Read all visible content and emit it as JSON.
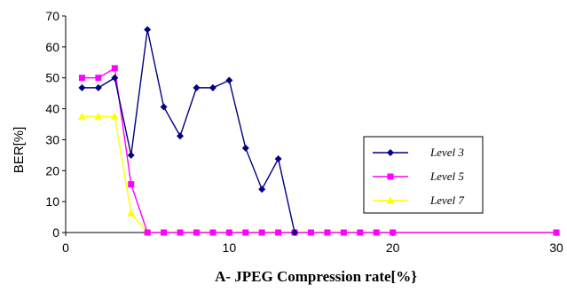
{
  "chart_data": {
    "type": "line",
    "xlabel": "A- JPEG Compression rate[%}",
    "ylabel": "BER[%]",
    "xlim": [
      0,
      30
    ],
    "ylim": [
      0,
      70
    ],
    "xticks": [
      0,
      10,
      20,
      30
    ],
    "yticks": [
      0,
      10,
      20,
      30,
      40,
      50,
      60,
      70
    ],
    "grid": false,
    "legend_position": "right",
    "series": [
      {
        "name": "Level 3",
        "color": "#000080",
        "marker": "diamond",
        "points": [
          [
            1,
            46.8
          ],
          [
            2,
            46.8
          ],
          [
            3,
            50
          ],
          [
            4,
            25
          ],
          [
            5,
            65.6
          ],
          [
            6,
            40.6
          ],
          [
            7,
            31.2
          ],
          [
            8,
            46.8
          ],
          [
            9,
            46.8
          ],
          [
            10,
            49.2
          ],
          [
            11,
            27.3
          ],
          [
            12,
            14
          ],
          [
            13,
            23.8
          ],
          [
            14,
            0
          ]
        ]
      },
      {
        "name": "Level 5",
        "color": "#FF00FF",
        "marker": "square",
        "points": [
          [
            1,
            50
          ],
          [
            2,
            50
          ],
          [
            3,
            53.1
          ],
          [
            4,
            15.6
          ],
          [
            5,
            0
          ],
          [
            6,
            0
          ],
          [
            7,
            0
          ],
          [
            8,
            0
          ],
          [
            9,
            0
          ],
          [
            10,
            0
          ],
          [
            11,
            0
          ],
          [
            12,
            0
          ],
          [
            13,
            0
          ],
          [
            14,
            0
          ],
          [
            15,
            0
          ],
          [
            16,
            0
          ],
          [
            17,
            0
          ],
          [
            18,
            0
          ],
          [
            19,
            0
          ],
          [
            20,
            0
          ],
          [
            30,
            0
          ]
        ]
      },
      {
        "name": "Level 7",
        "color": "#FFFF00",
        "marker": "triangle",
        "points": [
          [
            1,
            37.5
          ],
          [
            2,
            37.5
          ],
          [
            3,
            37.5
          ],
          [
            4,
            6.2
          ],
          [
            5,
            0
          ],
          [
            6,
            0
          ],
          [
            7,
            0
          ],
          [
            8,
            0
          ],
          [
            9,
            0
          ],
          [
            10,
            0
          ],
          [
            11,
            0
          ],
          [
            12,
            0
          ],
          [
            13,
            0
          ],
          [
            14,
            0
          ],
          [
            15,
            0
          ],
          [
            16,
            0
          ],
          [
            17,
            0
          ],
          [
            18,
            0
          ],
          [
            19,
            0
          ],
          [
            20,
            0
          ],
          [
            30,
            0
          ]
        ]
      }
    ]
  }
}
